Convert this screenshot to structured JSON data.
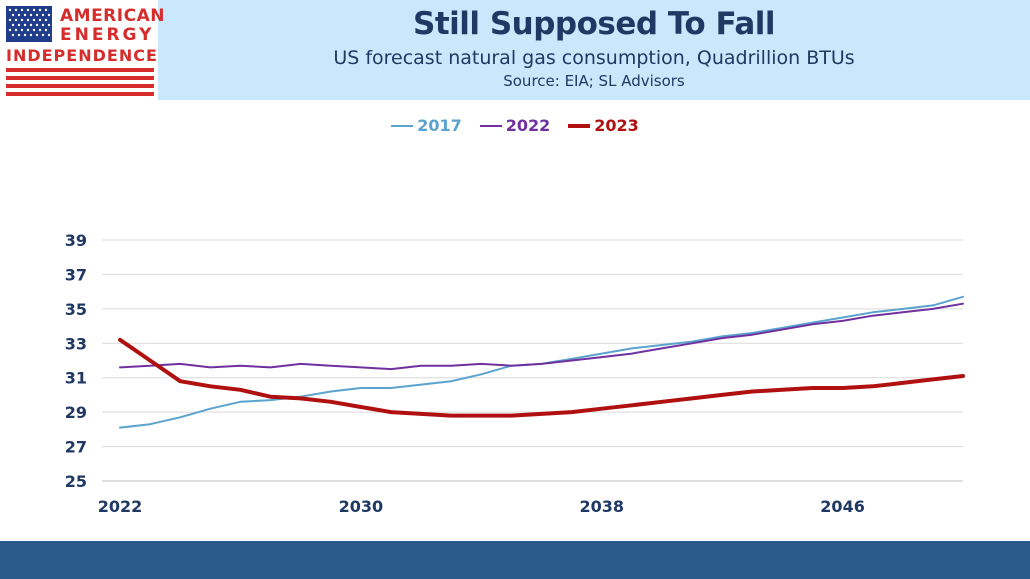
{
  "header": {
    "title": "Still Supposed To Fall",
    "subtitle": "US forecast natural gas consumption, Quadrillion BTUs",
    "source": "Source: EIA; SL Advisors"
  },
  "logo": {
    "line1": "AMERICAN",
    "line2": "ENERGY",
    "line3": "INDEPENDENCE"
  },
  "colors": {
    "s2017": "#5ba3cf",
    "s2022": "#7030a0",
    "s2023": "#b01010",
    "grid": "#d9d9d9",
    "footer": "#2a5a8a",
    "header": "#c9e8fb"
  },
  "chart_data": {
    "type": "line",
    "title": "Still Supposed To Fall",
    "subtitle": "US forecast natural gas consumption, Quadrillion BTUs",
    "xlabel": "",
    "ylabel": "",
    "x": [
      2022,
      2023,
      2024,
      2025,
      2026,
      2027,
      2028,
      2029,
      2030,
      2031,
      2032,
      2033,
      2034,
      2035,
      2036,
      2037,
      2038,
      2039,
      2040,
      2041,
      2042,
      2043,
      2044,
      2045,
      2046,
      2047,
      2048,
      2049,
      2050
    ],
    "x_ticks": [
      "2022",
      "2030",
      "2038",
      "2046"
    ],
    "x_tick_values": [
      2022,
      2030,
      2038,
      2046
    ],
    "y_ticks": [
      "25",
      "27",
      "29",
      "31",
      "33",
      "35",
      "37",
      "39"
    ],
    "y_tick_values": [
      25,
      27,
      29,
      31,
      33,
      35,
      37,
      39
    ],
    "ylim": [
      25,
      39
    ],
    "xlim": [
      2022,
      2050
    ],
    "grid": true,
    "legend_position": "top-center",
    "series": [
      {
        "name": "2017",
        "color": "#5ba3cf",
        "width": 2,
        "values": [
          28.1,
          28.3,
          28.7,
          29.2,
          29.6,
          29.7,
          29.9,
          30.2,
          30.4,
          30.4,
          30.6,
          30.8,
          31.2,
          31.7,
          31.8,
          32.1,
          32.4,
          32.7,
          32.9,
          33.1,
          33.4,
          33.6,
          33.9,
          34.2,
          34.5,
          34.8,
          35.0,
          35.2,
          35.7
        ]
      },
      {
        "name": "2022",
        "color": "#7030a0",
        "width": 2,
        "values": [
          31.6,
          31.7,
          31.8,
          31.6,
          31.7,
          31.6,
          31.8,
          31.7,
          31.6,
          31.5,
          31.7,
          31.7,
          31.8,
          31.7,
          31.8,
          32.0,
          32.2,
          32.4,
          32.7,
          33.0,
          33.3,
          33.5,
          33.8,
          34.1,
          34.3,
          34.6,
          34.8,
          35.0,
          35.3
        ]
      },
      {
        "name": "2023",
        "color": "#b01010",
        "width": 4,
        "values": [
          33.2,
          32.0,
          30.8,
          30.5,
          30.3,
          29.9,
          29.8,
          29.6,
          29.3,
          29.0,
          28.9,
          28.8,
          28.8,
          28.8,
          28.9,
          29.0,
          29.2,
          29.4,
          29.6,
          29.8,
          30.0,
          30.2,
          30.3,
          30.4,
          30.4,
          30.5,
          30.7,
          30.9,
          31.1
        ]
      }
    ]
  }
}
